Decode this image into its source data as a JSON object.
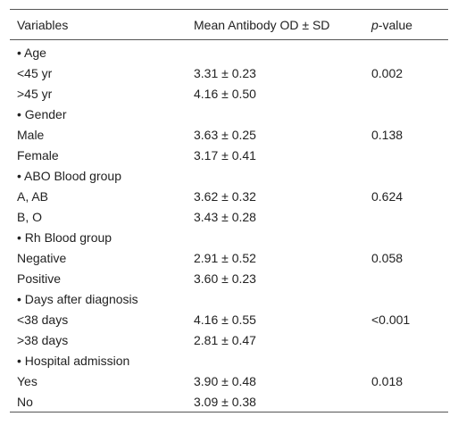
{
  "table": {
    "headers": {
      "variables": "Variables",
      "mean": "Mean Antibody OD ± SD",
      "pvalue_italic": "p",
      "pvalue_rest": "-value"
    },
    "rows": [
      {
        "label": "• Age",
        "mean": "",
        "p": ""
      },
      {
        "label": "<45 yr",
        "mean": "3.31 ± 0.23",
        "p": "0.002"
      },
      {
        "label": ">45 yr",
        "mean": "4.16 ± 0.50",
        "p": ""
      },
      {
        "label": "• Gender",
        "mean": "",
        "p": ""
      },
      {
        "label": "Male",
        "mean": "3.63 ± 0.25",
        "p": "0.138"
      },
      {
        "label": "Female",
        "mean": "3.17 ± 0.41",
        "p": ""
      },
      {
        "label": "• ABO Blood group",
        "mean": "",
        "p": ""
      },
      {
        "label": "A, AB",
        "mean": "3.62 ± 0.32",
        "p": "0.624"
      },
      {
        "label": "B, O",
        "mean": "3.43 ± 0.28",
        "p": ""
      },
      {
        "label": "• Rh Blood group",
        "mean": "",
        "p": ""
      },
      {
        "label": "Negative",
        "mean": "2.91 ± 0.52",
        "p": "0.058"
      },
      {
        "label": "Positive",
        "mean": "3.60 ± 0.23",
        "p": ""
      },
      {
        "label": "• Days after diagnosis",
        "mean": "",
        "p": ""
      },
      {
        "label": "<38 days",
        "mean": "4.16 ± 0.55",
        "p": "<0.001"
      },
      {
        "label": ">38 days",
        "mean": "2.81 ± 0.47",
        "p": ""
      },
      {
        "label": "• Hospital admission",
        "mean": "",
        "p": ""
      },
      {
        "label": "Yes",
        "mean": "3.90 ± 0.48",
        "p": "0.018"
      },
      {
        "label": "No",
        "mean": "3.09 ± 0.38",
        "p": ""
      }
    ]
  }
}
